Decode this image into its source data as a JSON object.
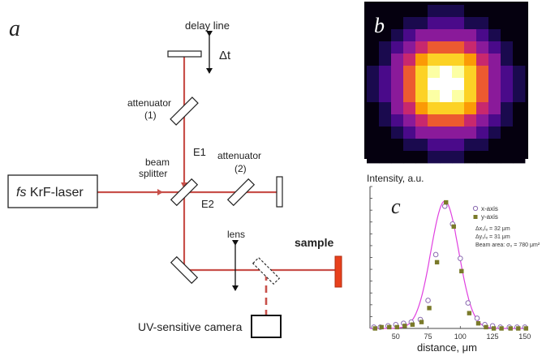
{
  "panels": {
    "a": "a",
    "b": "b",
    "c": "c"
  },
  "setup": {
    "laser": {
      "prefix": "fs",
      "name": " KrF-laser"
    },
    "delay_line": "delay line",
    "delta_t": "Δt",
    "attenuator1": {
      "name": "attenuator",
      "num": "(1)"
    },
    "attenuator2": {
      "name": "attenuator",
      "num": "(2)"
    },
    "beam_splitter": {
      "line1": "beam",
      "line2": "splitter"
    },
    "e1": "E1",
    "e2": "E2",
    "lens": "lens",
    "sample": "sample",
    "camera": "UV-sensitive camera",
    "colors": {
      "beam": "#c8504a",
      "sample": "#e8401c",
      "sample_edge": "#b02e10"
    }
  },
  "beam_image": {
    "grid_size": 13,
    "sigma_cells": 2.9,
    "colormap": [
      "#05000f",
      "#1a0a4e",
      "#4a0a8a",
      "#8a1a9a",
      "#c8286e",
      "#ec5a30",
      "#fb9a06",
      "#fcd225",
      "#fcffa4",
      "#ffffff"
    ]
  },
  "chart_data": {
    "type": "scatter",
    "ylabel": "Intensity, a.u.",
    "xlabel": "distance, μm",
    "xlim": [
      30,
      152
    ],
    "xticks": [
      50,
      75,
      100,
      125,
      150
    ],
    "legend": [
      "x-axis",
      "y-axis"
    ],
    "legend_position": "top-right",
    "annotations": [
      "Δx₁/ₑ = 32 μm",
      "Δy₁/ₑ = 31 μm",
      "Beam area: σ₀ = 780 μm²"
    ],
    "fit_line": {
      "color": "#e040e0",
      "center": 88,
      "sigma": 10.8,
      "peak": 1.0
    },
    "series": [
      {
        "name": "x-axis",
        "marker": "open-circle",
        "color": "#8a6ab0",
        "x": [
          33,
          38,
          44,
          50,
          56,
          62,
          69,
          75,
          81,
          88,
          94,
          100,
          106,
          113,
          119,
          125,
          131,
          138,
          144,
          150
        ],
        "y": [
          0.01,
          0.01,
          0.02,
          0.03,
          0.04,
          0.05,
          0.07,
          0.22,
          0.58,
          0.96,
          0.82,
          0.55,
          0.2,
          0.08,
          0.03,
          0.02,
          0.01,
          0.01,
          0.01,
          0.01
        ]
      },
      {
        "name": "y-axis",
        "marker": "filled-square",
        "color": "#7a7a2a",
        "x": [
          33,
          38,
          44,
          50,
          56,
          62,
          69,
          75,
          81,
          88,
          94,
          100,
          106,
          113,
          119,
          125,
          131,
          138,
          144,
          150
        ],
        "y": [
          0.0,
          0.01,
          0.01,
          0.01,
          0.02,
          0.03,
          0.05,
          0.16,
          0.52,
          0.99,
          0.8,
          0.45,
          0.12,
          0.04,
          0.01,
          0.0,
          0.0,
          0.0,
          0.0,
          0.0
        ]
      }
    ]
  }
}
